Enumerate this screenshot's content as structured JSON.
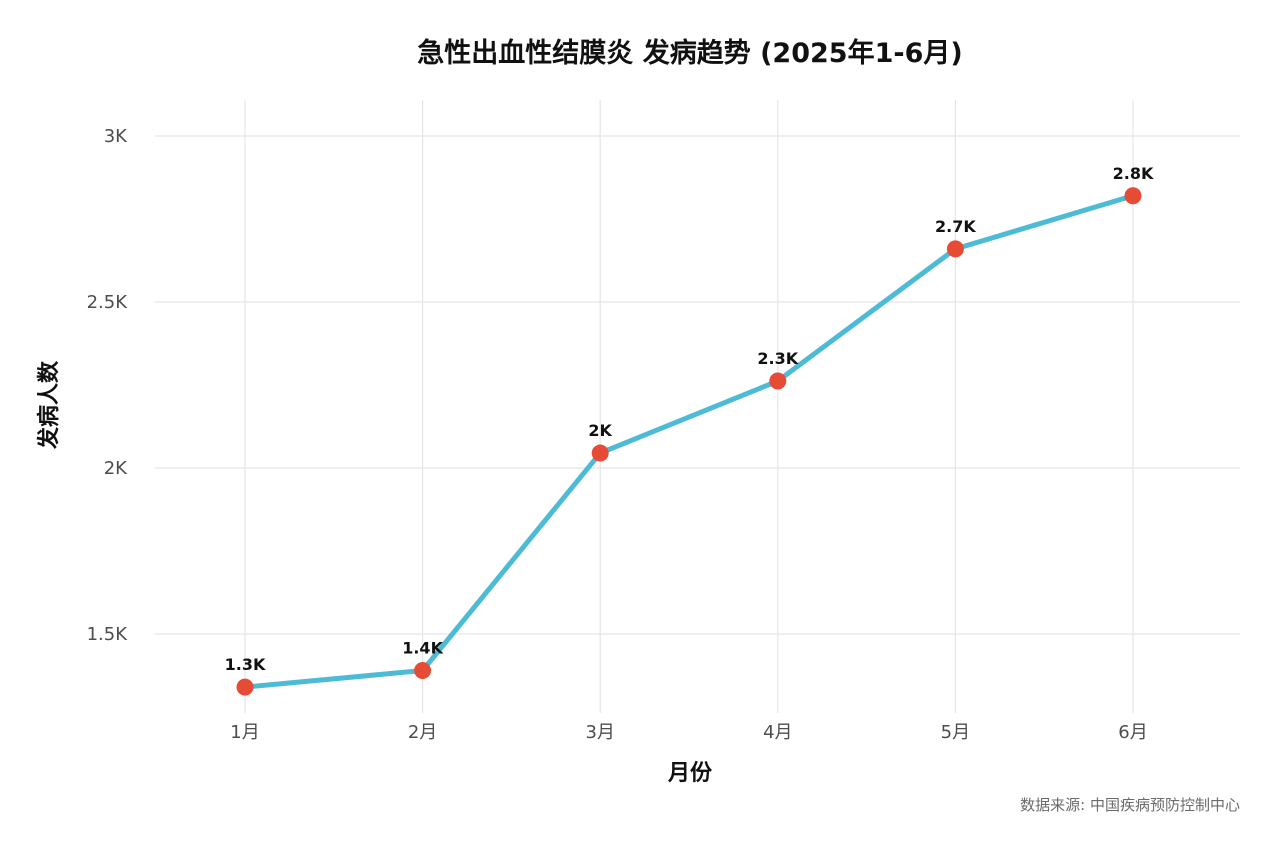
{
  "chart_data": {
    "type": "line",
    "title": "急性出血性结膜炎 发病趋势 (2025年1-6月)",
    "xlabel": "月份",
    "ylabel": "发病人数",
    "caption": "数据来源: 中国疾病预防控制中心",
    "categories": [
      "1月",
      "2月",
      "3月",
      "4月",
      "5月",
      "6月"
    ],
    "series": [
      {
        "values": [
          1340,
          1390,
          2045,
          2262,
          2660,
          2820
        ],
        "labels": [
          "1.3K",
          "1.4K",
          "2K",
          "2.3K",
          "2.7K",
          "2.8K"
        ]
      }
    ],
    "ylim": [
      1300,
      3100
    ],
    "yticks": [
      1500,
      2000,
      2500,
      3000
    ],
    "ytick_labels": [
      "1.5K",
      "2K",
      "2.5K",
      "3K"
    ],
    "grid": true,
    "legend": "none",
    "colors": {
      "line": "#4DBBD5",
      "point": "#E64B35"
    }
  }
}
